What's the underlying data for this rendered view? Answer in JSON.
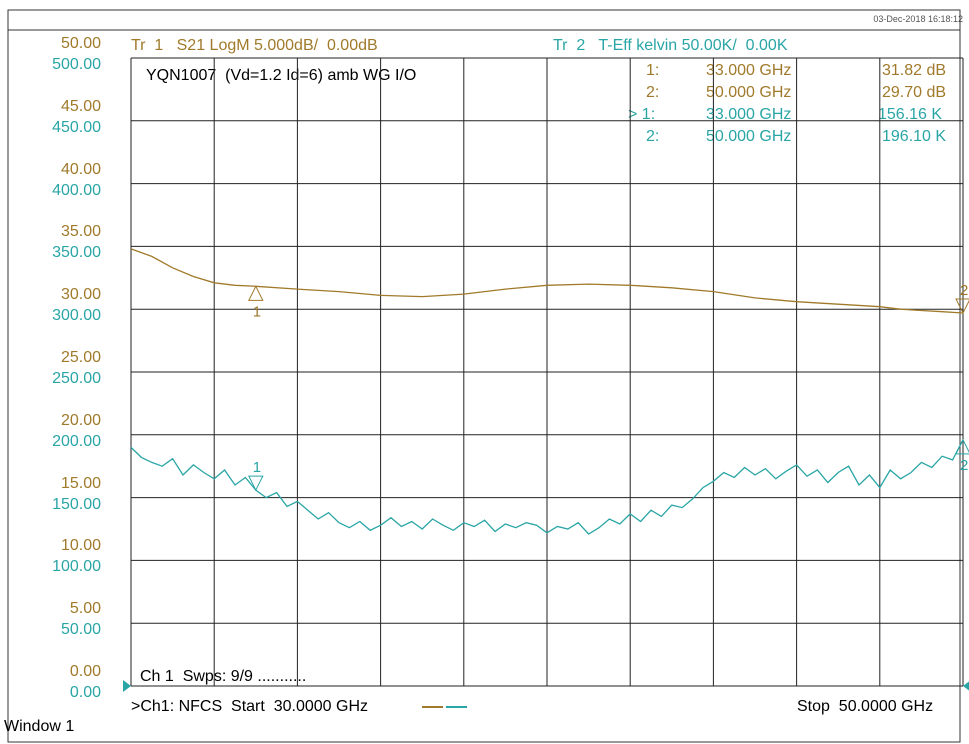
{
  "datestamp": "03-Dec-2018  16:18:12",
  "trace1": {
    "header": "Tr  1   S21 LogM 5.000dB/  0.00dB",
    "color": "#a07a2a"
  },
  "trace2": {
    "header": "Tr  2   T-Eff kelvin 50.00K/  0.00K",
    "color": "#2aa5a5"
  },
  "title": "YQN1007  (Vd=1.2 Id=6) amb WG I/O",
  "markers": [
    {
      "idx": "1:",
      "freq": "33.000 GHz",
      "value": "31.82 dB",
      "trace": 1
    },
    {
      "idx": "2:",
      "freq": "50.000 GHz",
      "value": "29.70 dB",
      "trace": 1
    },
    {
      "idx": "> 1:",
      "freq": "33.000 GHz",
      "value": "156.16 K",
      "trace": 2
    },
    {
      "idx": "2:",
      "freq": "50.000 GHz",
      "value": "196.10 K",
      "trace": 2
    }
  ],
  "sweeps": "Ch 1  Swps: 9/9 ...........",
  "footer": {
    "channel": ">Ch1: NFCS  Start  30.0000 GHz",
    "stop": "Stop  50.0000 GHz"
  },
  "window_label": "Window 1",
  "chart_data": {
    "type": "line",
    "x_start_ghz": 30.0,
    "x_stop_ghz": 50.0,
    "y1_ticks": [
      "50.00",
      "45.00",
      "40.00",
      "35.00",
      "30.00",
      "25.00",
      "20.00",
      "15.00",
      "10.00",
      "5.00",
      "0.00"
    ],
    "y2_ticks": [
      "500.00",
      "450.00",
      "400.00",
      "350.00",
      "300.00",
      "250.00",
      "200.00",
      "150.00",
      "100.00",
      "50.00",
      "0.00"
    ],
    "y1_range": [
      0,
      50
    ],
    "y2_range": [
      0,
      500
    ],
    "grid": true,
    "marker_labels": [
      "1",
      "2"
    ],
    "series": [
      {
        "axis": "y1",
        "color": "#a07a2a",
        "x": [
          30,
          30.5,
          31,
          31.5,
          32,
          32.5,
          33,
          34,
          35,
          36,
          37,
          38,
          39,
          40,
          41,
          42,
          43,
          44,
          45,
          46,
          47,
          48,
          48.5,
          49,
          49.5,
          50
        ],
        "values": [
          34.8,
          34.2,
          33.3,
          32.6,
          32.1,
          31.9,
          31.82,
          31.6,
          31.4,
          31.1,
          31.0,
          31.2,
          31.6,
          31.9,
          32.0,
          31.9,
          31.7,
          31.4,
          30.9,
          30.6,
          30.4,
          30.2,
          30.0,
          29.9,
          29.8,
          29.7
        ]
      },
      {
        "axis": "y2",
        "color": "#2aa5a5",
        "x": [
          30,
          30.25,
          30.5,
          30.75,
          31,
          31.25,
          31.5,
          31.75,
          32,
          32.25,
          32.5,
          32.75,
          33,
          33.25,
          33.5,
          33.75,
          34,
          34.25,
          34.5,
          34.75,
          35,
          35.25,
          35.5,
          35.75,
          36,
          36.25,
          36.5,
          36.75,
          37,
          37.25,
          37.5,
          37.75,
          38,
          38.25,
          38.5,
          38.75,
          39,
          39.25,
          39.5,
          39.75,
          40,
          40.25,
          40.5,
          40.75,
          41,
          41.25,
          41.5,
          41.75,
          42,
          42.25,
          42.5,
          42.75,
          43,
          43.25,
          43.5,
          43.75,
          44,
          44.25,
          44.5,
          44.75,
          45,
          45.25,
          45.5,
          45.75,
          46,
          46.25,
          46.5,
          46.75,
          47,
          47.25,
          47.5,
          47.75,
          48,
          48.25,
          48.5,
          48.75,
          49,
          49.25,
          49.5,
          49.75,
          50
        ],
        "values": [
          190,
          182,
          178,
          175,
          181,
          168,
          176,
          170,
          165,
          172,
          160,
          166,
          156,
          150,
          154,
          143,
          147,
          140,
          133,
          138,
          130,
          126,
          131,
          124,
          128,
          134,
          127,
          131,
          125,
          133,
          128,
          124,
          130,
          127,
          132,
          123,
          129,
          126,
          130,
          128,
          122,
          127,
          125,
          130,
          121,
          126,
          133,
          129,
          137,
          131,
          140,
          135,
          144,
          142,
          149,
          158,
          163,
          170,
          166,
          174,
          168,
          173,
          165,
          171,
          176,
          167,
          172,
          162,
          170,
          175,
          160,
          168,
          158,
          172,
          165,
          170,
          178,
          174,
          183,
          180,
          196
        ]
      }
    ]
  }
}
